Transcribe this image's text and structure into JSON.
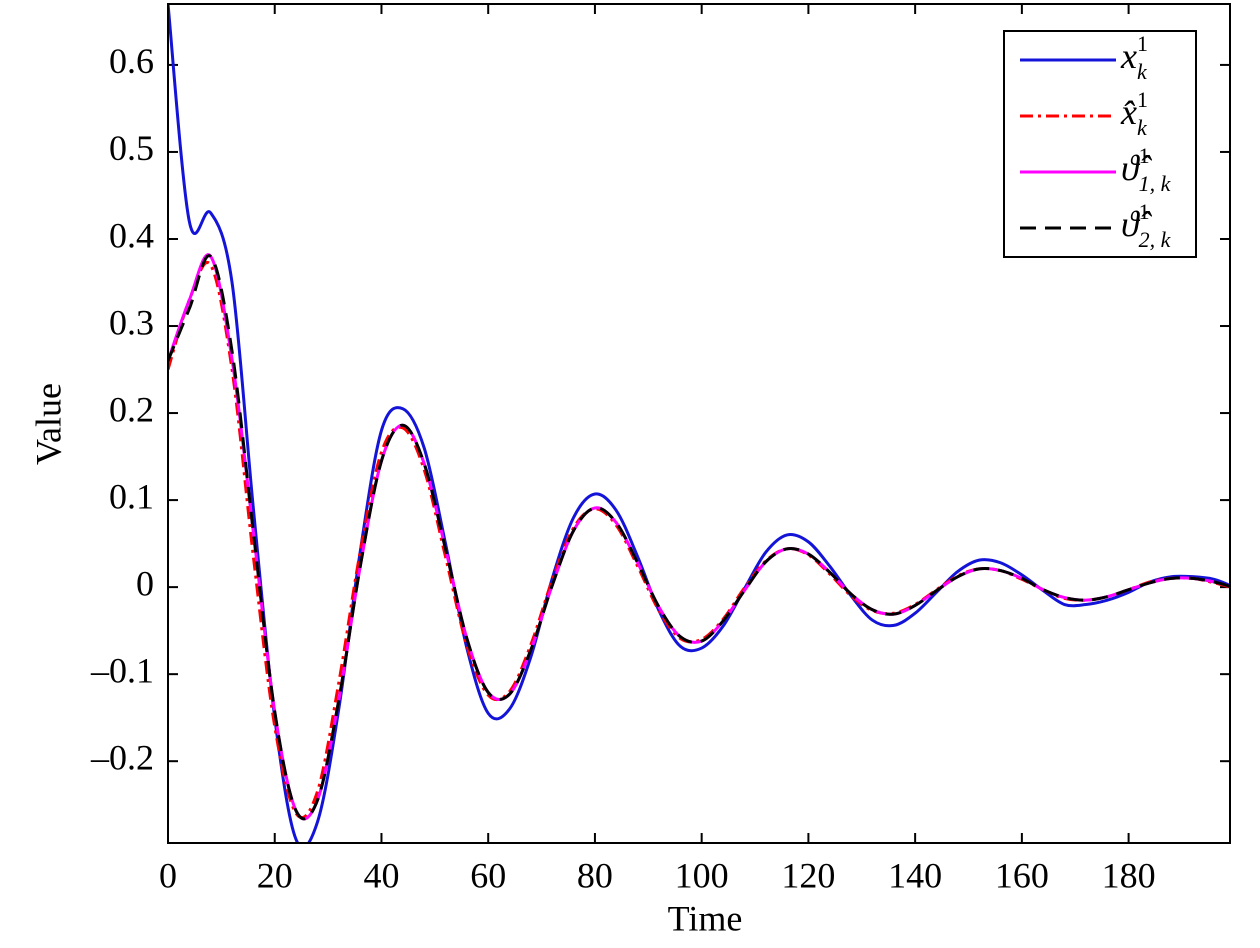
{
  "chart_data": {
    "type": "line",
    "x_label": "Time",
    "y_label": "Value",
    "x": [
      0,
      4,
      8,
      12,
      16,
      20,
      24,
      28,
      32,
      36,
      40,
      44,
      48,
      52,
      56,
      60,
      64,
      68,
      72,
      76,
      80,
      84,
      88,
      92,
      96,
      100,
      104,
      108,
      112,
      116,
      120,
      124,
      128,
      132,
      136,
      140,
      144,
      148,
      152,
      156,
      160,
      164,
      168,
      172,
      176,
      180,
      184,
      188,
      192,
      196,
      199
    ],
    "series": [
      {
        "name": "x",
        "name_sub": "k",
        "name_sup": "1",
        "color": "#1414d8",
        "dash": "solid",
        "values": [
          0.67,
          0.42,
          0.43,
          0.35,
          0.09,
          -0.15,
          -0.29,
          -0.27,
          -0.14,
          0.04,
          0.18,
          0.205,
          0.16,
          0.05,
          -0.07,
          -0.145,
          -0.14,
          -0.08,
          0.01,
          0.08,
          0.107,
          0.088,
          0.035,
          -0.027,
          -0.068,
          -0.07,
          -0.045,
          -0.002,
          0.04,
          0.06,
          0.052,
          0.024,
          -0.01,
          -0.038,
          -0.044,
          -0.03,
          -0.006,
          0.018,
          0.031,
          0.028,
          0.014,
          -0.004,
          -0.02,
          -0.02,
          -0.015,
          -0.006,
          0.006,
          0.012,
          0.012,
          0.009,
          0.002
        ]
      },
      {
        "name": "x̂",
        "name_sub": "k",
        "name_sup": "1",
        "color": "#ff0000",
        "dash": "dashdot",
        "values": [
          0.25,
          0.33,
          0.37,
          0.25,
          0.035,
          -0.16,
          -0.26,
          -0.235,
          -0.11,
          0.04,
          0.155,
          0.183,
          0.135,
          0.035,
          -0.067,
          -0.124,
          -0.12,
          -0.066,
          0.008,
          0.068,
          0.09,
          0.071,
          0.024,
          -0.027,
          -0.059,
          -0.06,
          -0.037,
          -0.001,
          0.03,
          0.044,
          0.037,
          0.015,
          -0.01,
          -0.027,
          -0.03,
          -0.02,
          -0.003,
          0.013,
          0.021,
          0.019,
          0.009,
          -0.003,
          -0.013,
          -0.015,
          -0.011,
          -0.003,
          0.006,
          0.01,
          0.01,
          0.005,
          0
        ]
      },
      {
        "name": "ϑ̂",
        "name_sub": "1, k",
        "name_sup": "1",
        "color": "#ff00ff",
        "dash": "solid",
        "values": [
          0.26,
          0.33,
          0.38,
          0.262,
          0.063,
          -0.143,
          -0.257,
          -0.245,
          -0.13,
          0.023,
          0.145,
          0.186,
          0.142,
          0.044,
          -0.059,
          -0.121,
          -0.123,
          -0.072,
          0.002,
          0.065,
          0.091,
          0.074,
          0.028,
          -0.023,
          -0.057,
          -0.062,
          -0.039,
          -0.004,
          0.029,
          0.044,
          0.038,
          0.017,
          -0.008,
          -0.026,
          -0.031,
          -0.021,
          -0.004,
          0.012,
          0.021,
          0.019,
          0.01,
          -0.003,
          -0.012,
          -0.015,
          -0.011,
          -0.003,
          0.005,
          0.01,
          0.01,
          0.006,
          0.001
        ]
      },
      {
        "name": "ϑ̂",
        "name_sub": "2, k",
        "name_sup": "1",
        "color": "#000000",
        "dash": "dashed",
        "values": [
          0.26,
          0.32,
          0.38,
          0.271,
          0.063,
          -0.143,
          -0.257,
          -0.245,
          -0.13,
          0.023,
          0.145,
          0.186,
          0.142,
          0.044,
          -0.059,
          -0.121,
          -0.123,
          -0.072,
          0.002,
          0.065,
          0.091,
          0.074,
          0.028,
          -0.023,
          -0.057,
          -0.062,
          -0.039,
          -0.004,
          0.029,
          0.044,
          0.038,
          0.017,
          -0.008,
          -0.026,
          -0.031,
          -0.021,
          -0.004,
          0.012,
          0.021,
          0.019,
          0.01,
          -0.003,
          -0.012,
          -0.015,
          -0.011,
          -0.003,
          0.005,
          0.01,
          0.01,
          0.006,
          0.001
        ]
      }
    ],
    "xlim": [
      0,
      199
    ],
    "ylim": [
      -0.294,
      0.67
    ],
    "xticks": [
      0,
      20,
      40,
      60,
      80,
      100,
      120,
      140,
      160,
      180
    ],
    "yticks": [
      {
        "value": -0.2,
        "label": "–0.2"
      },
      {
        "value": -0.1,
        "label": "–0.1"
      },
      0,
      0.1,
      0.2,
      0.3,
      0.4,
      0.5,
      0.6
    ],
    "grid": false,
    "legend": "upper right"
  }
}
